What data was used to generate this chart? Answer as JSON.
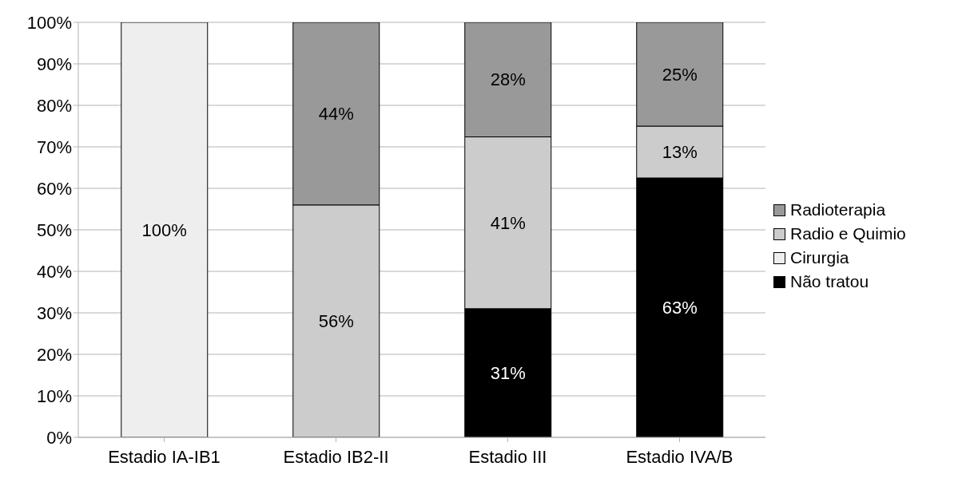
{
  "chart_data": {
    "type": "bar",
    "stacked": true,
    "categories": [
      "Estadio IA-IB1",
      "Estadio  IB2-II",
      "Estadio III",
      "Estadio  IVA/B"
    ],
    "series": [
      {
        "name": "Não tratou",
        "color": "#000000",
        "values": [
          null,
          null,
          31,
          62.5
        ],
        "value_labels": [
          null,
          null,
          "31%",
          "63%"
        ]
      },
      {
        "name": "Cirurgia",
        "color": "#eeeeee",
        "values": [
          100,
          null,
          null,
          null
        ],
        "value_labels": [
          "100%",
          null,
          null,
          null
        ]
      },
      {
        "name": "Radio e Quimio",
        "color": "#cccccc",
        "values": [
          null,
          56,
          41.4,
          12.5
        ],
        "value_labels": [
          null,
          "56%",
          "41%",
          "13%"
        ]
      },
      {
        "name": "Radioterapia",
        "color": "#999999",
        "values": [
          null,
          44,
          27.6,
          25
        ],
        "value_labels": [
          null,
          "44%",
          "28%",
          "25%"
        ]
      }
    ],
    "ylim": [
      0,
      100
    ],
    "yticks": [
      {
        "value": 0,
        "label": "0%"
      },
      {
        "value": 10,
        "label": "10%"
      },
      {
        "value": 20,
        "label": "20%"
      },
      {
        "value": 30,
        "label": "30%"
      },
      {
        "value": 40,
        "label": "40%"
      },
      {
        "value": 50,
        "label": "50%"
      },
      {
        "value": 60,
        "label": "60%"
      },
      {
        "value": 70,
        "label": "70%"
      },
      {
        "value": 80,
        "label": "80%"
      },
      {
        "value": 90,
        "label": "90%"
      },
      {
        "value": 100,
        "label": "100%"
      }
    ],
    "grid": "y",
    "legend": "right"
  }
}
